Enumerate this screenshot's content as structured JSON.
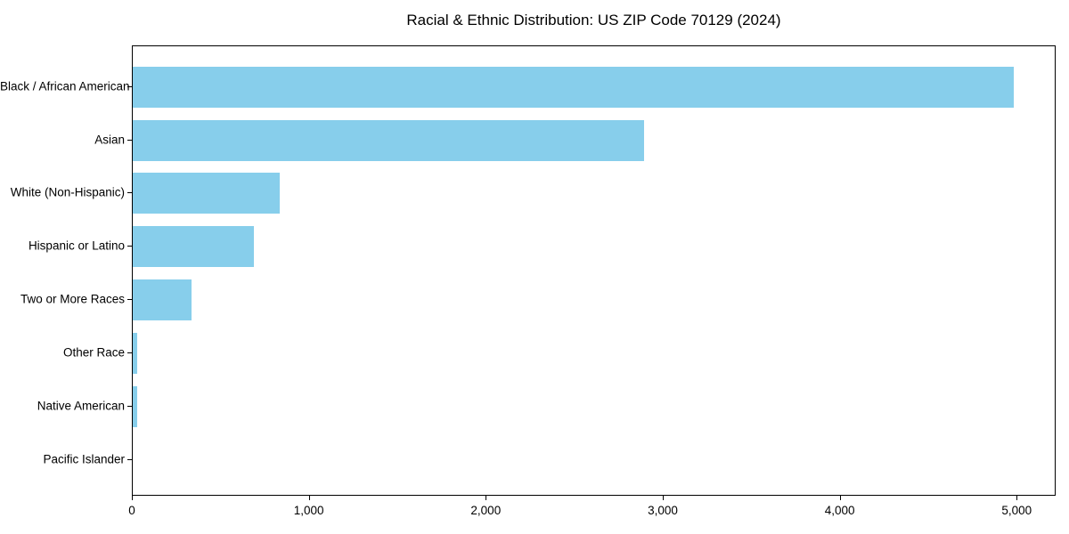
{
  "chart_data": {
    "type": "bar",
    "orientation": "horizontal",
    "title": "Racial & Ethnic Distribution: US ZIP Code 70129 (2024)",
    "categories": [
      "Black / African American",
      "Asian",
      "White (Non-Hispanic)",
      "Hispanic or Latino",
      "Two or More Races",
      "Other Race",
      "Native American",
      "Pacific Islander"
    ],
    "values": [
      4980,
      2890,
      830,
      685,
      330,
      25,
      25,
      0
    ],
    "xlabel": "",
    "ylabel": "",
    "xlim": [
      0,
      5220
    ],
    "xticks": [
      {
        "value": 0,
        "label": "0"
      },
      {
        "value": 1000,
        "label": "1,000"
      },
      {
        "value": 2000,
        "label": "2,000"
      },
      {
        "value": 3000,
        "label": "3,000"
      },
      {
        "value": 4000,
        "label": "4,000"
      },
      {
        "value": 5000,
        "label": "5,000"
      }
    ],
    "bar_color": "#87CEEB",
    "background_color": "#ffffff",
    "frame_color": "#000000",
    "grid": false,
    "legend": null
  }
}
